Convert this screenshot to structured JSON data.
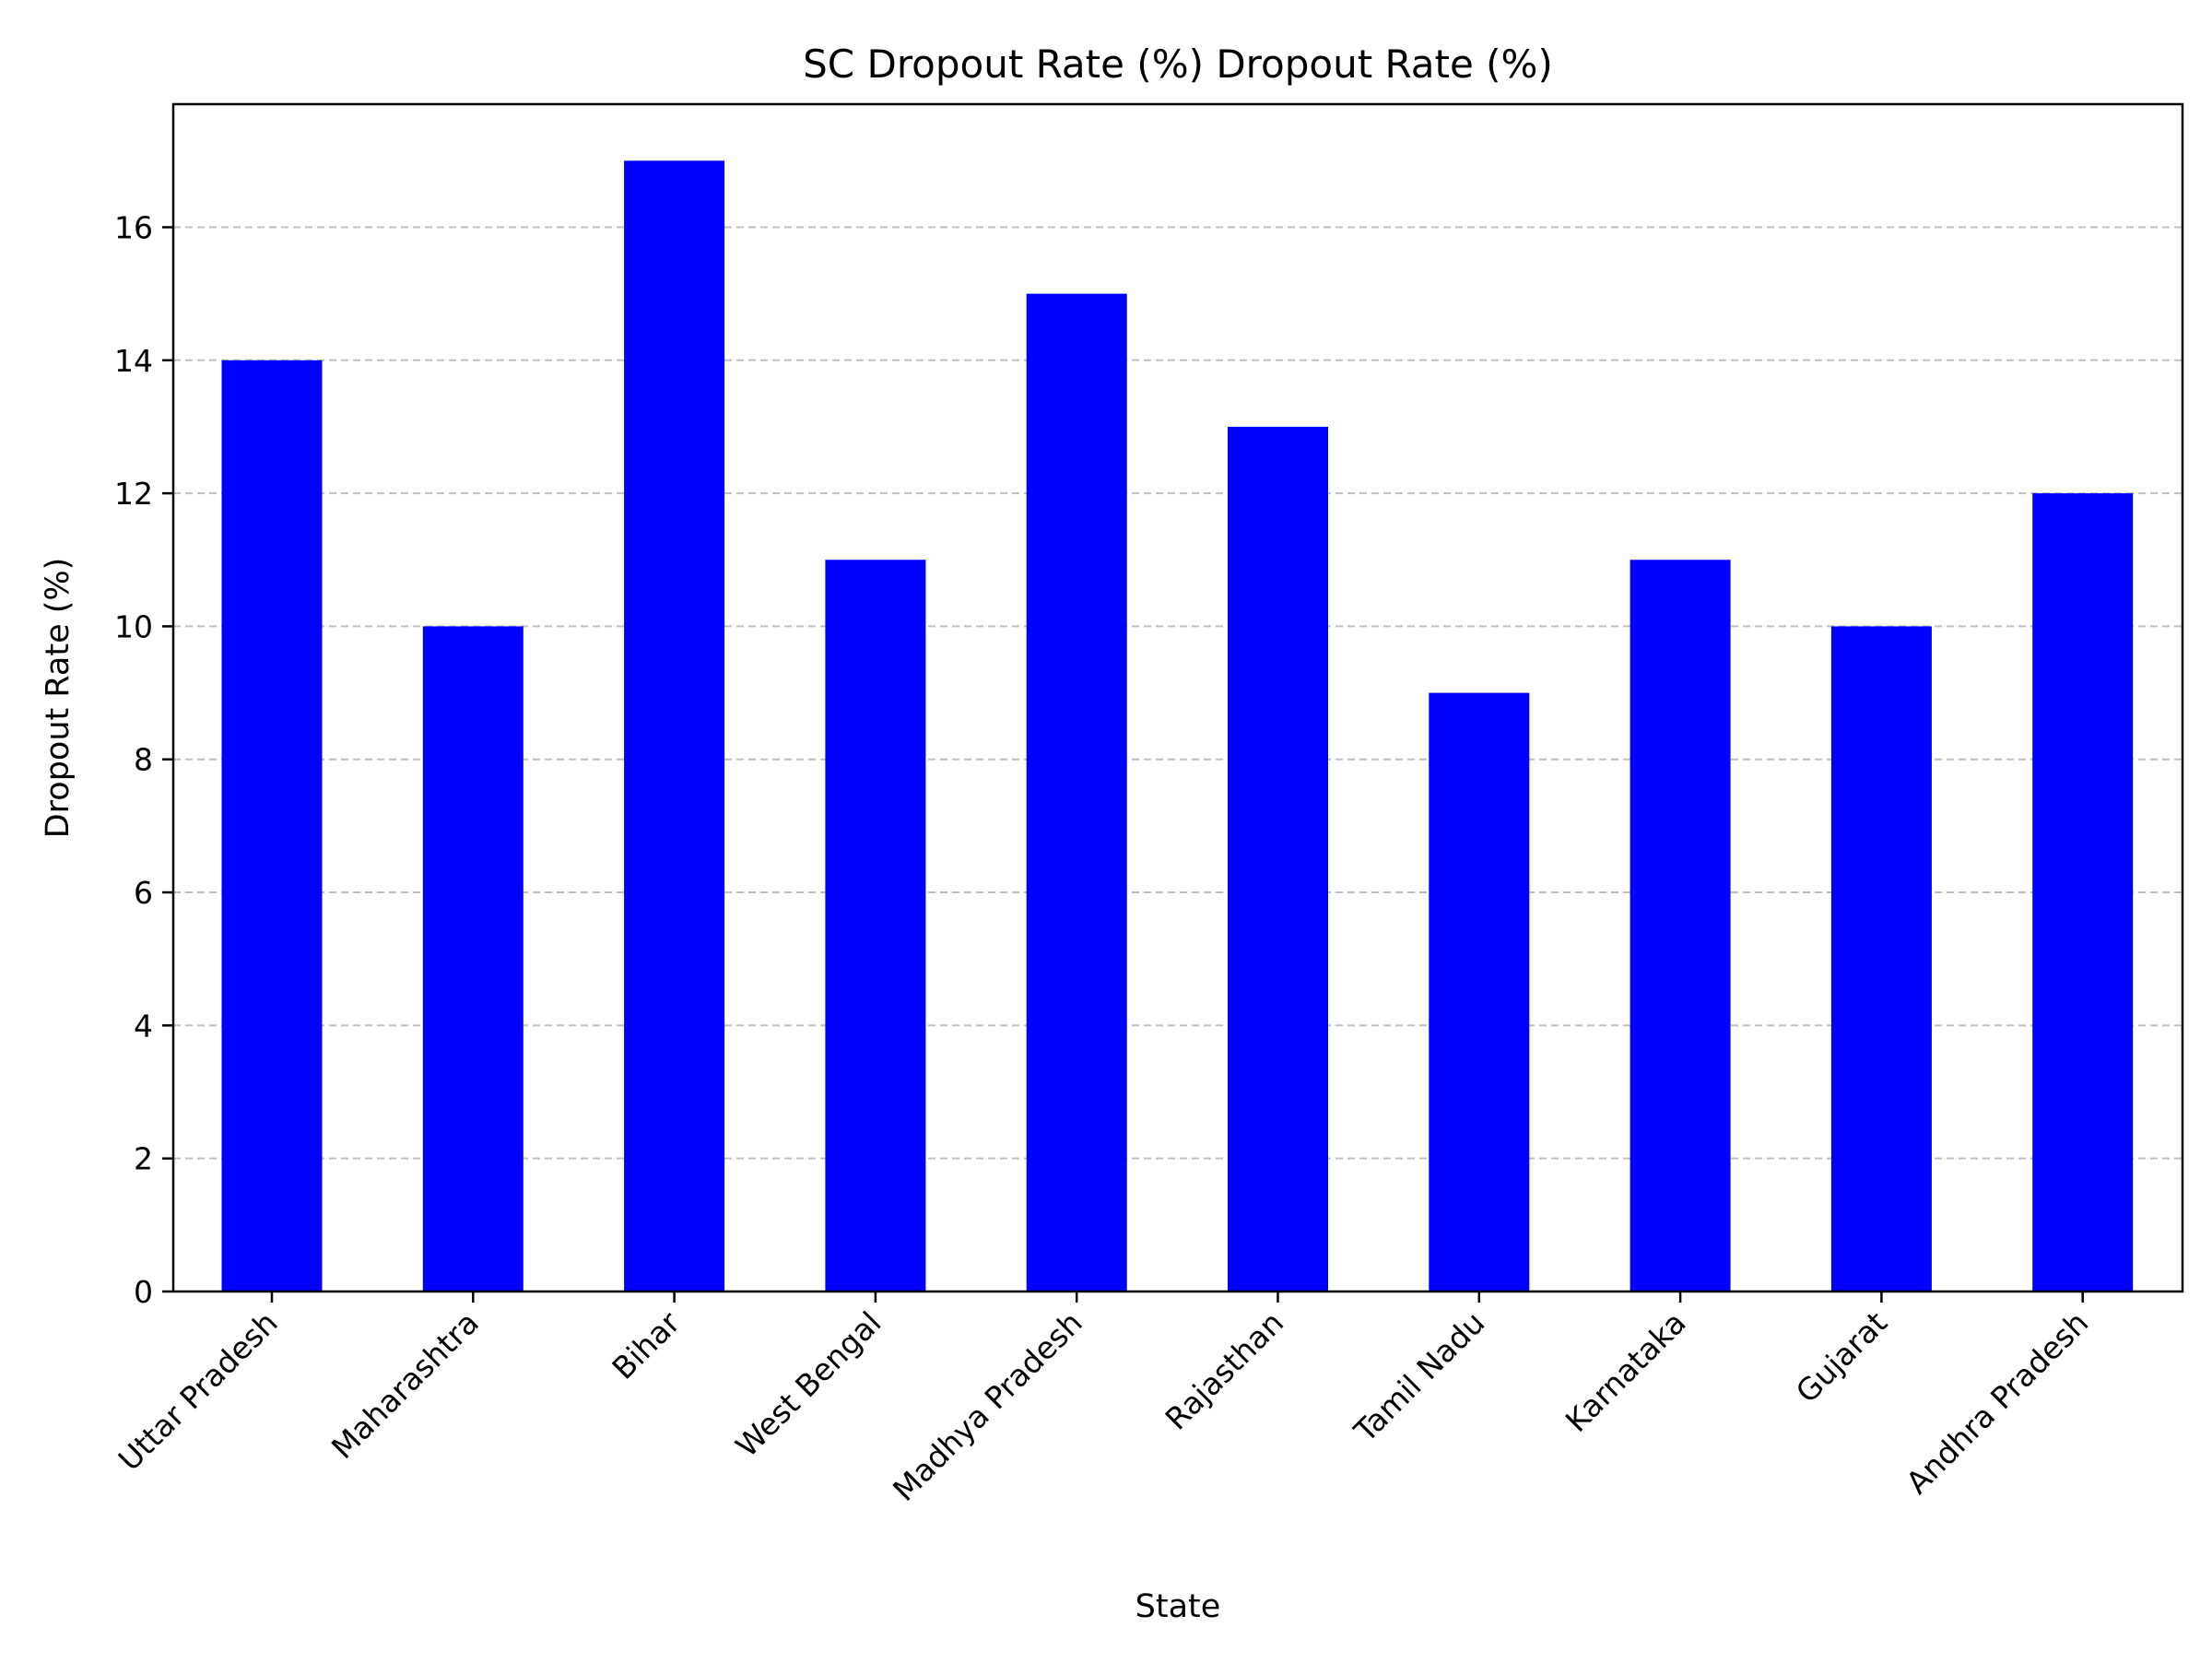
{
  "chart_data": {
    "type": "bar",
    "title": "SC Dropout Rate (%) Dropout Rate (%)",
    "xlabel": "State",
    "ylabel": "Dropout Rate (%)",
    "categories": [
      "Uttar Pradesh",
      "Maharashtra",
      "Bihar",
      "West Bengal",
      "Madhya Pradesh",
      "Rajasthan",
      "Tamil Nadu",
      "Karnataka",
      "Gujarat",
      "Andhra Pradesh"
    ],
    "values": [
      14,
      10,
      17,
      11,
      15,
      13,
      9,
      11,
      10,
      12
    ],
    "ylim": [
      0,
      17.85
    ],
    "yticks": [
      0,
      2,
      4,
      6,
      8,
      10,
      12,
      14,
      16
    ],
    "grid": "y-axis dashed",
    "bar_color": "#0000ff",
    "grid_color": "#c0c0c0"
  }
}
